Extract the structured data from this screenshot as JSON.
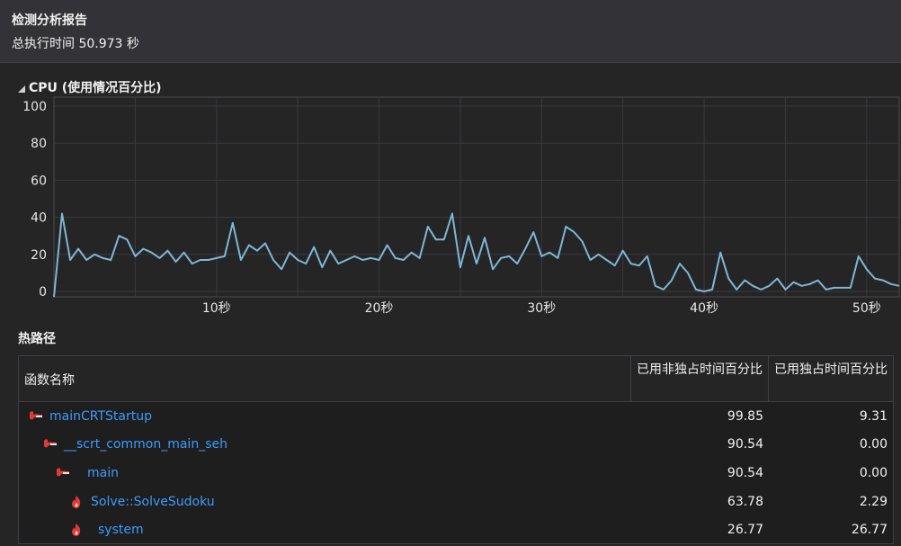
{
  "header": {
    "title": "检测分析报告",
    "total_time": "总执行时间 50.973 秒"
  },
  "cpu_section": {
    "label": "CPU (使用情况百分比)"
  },
  "chart_data": {
    "type": "line",
    "title": "CPU (使用情况百分比)",
    "xlabel": "",
    "ylabel": "",
    "ylim": [
      0,
      100
    ],
    "xlim": [
      0,
      52
    ],
    "y_ticks": [
      "100",
      "80",
      "60",
      "40",
      "20",
      "0"
    ],
    "y_tick_values": [
      100,
      80,
      60,
      40,
      20,
      0
    ],
    "x_ticks": [
      "10秒",
      "20秒",
      "30秒",
      "40秒",
      "50秒"
    ],
    "x_tick_values": [
      10,
      20,
      30,
      40,
      50
    ],
    "grid": true,
    "color": "#7fb6d6",
    "series": [
      {
        "x": [
          0,
          0.5,
          1,
          1.5,
          2,
          2.5,
          3,
          3.5,
          4,
          4.5,
          5,
          5.5,
          6,
          6.5,
          7,
          7.5,
          8,
          8.5,
          9,
          9.5,
          10,
          10.5,
          11,
          11.5,
          12,
          12.5,
          13,
          13.5,
          14,
          14.5,
          15,
          15.5,
          16,
          16.5,
          17,
          17.5,
          18,
          18.5,
          19,
          19.5,
          20,
          20.5,
          21,
          21.5,
          22,
          22.5,
          23,
          23.5,
          24,
          24.5,
          25,
          25.5,
          26,
          26.5,
          27,
          27.5,
          28,
          28.5,
          29,
          29.5,
          30,
          30.5,
          31,
          31.5,
          32,
          32.5,
          33,
          33.5,
          34,
          34.5,
          35,
          35.5,
          36,
          36.5,
          37,
          37.5,
          38,
          38.5,
          39,
          39.5,
          40,
          40.5,
          41,
          41.5,
          42,
          42.5,
          43,
          43.5,
          44,
          44.5,
          45,
          45.5,
          46,
          46.5,
          47,
          47.5,
          48,
          48.5,
          49,
          49.5,
          50,
          50.5,
          51,
          51.5,
          52
        ],
        "y": [
          -3,
          42,
          17,
          23,
          17,
          20,
          18,
          17,
          30,
          28,
          19,
          23,
          21,
          18,
          22,
          16,
          21,
          15,
          17,
          17,
          18,
          19,
          37,
          17,
          25,
          22,
          26,
          17,
          12,
          21,
          17,
          15,
          24,
          13,
          22,
          15,
          17,
          19,
          17,
          18,
          17,
          25,
          18,
          17,
          21,
          18,
          35,
          28,
          28,
          42,
          13,
          30,
          15,
          29,
          12,
          18,
          19,
          15,
          23,
          32,
          19,
          21,
          18,
          35,
          32,
          27,
          17,
          20,
          17,
          14,
          22,
          15,
          14,
          19,
          3,
          1,
          6,
          15,
          10,
          1,
          0,
          1,
          21,
          7,
          1,
          6,
          3,
          1,
          3,
          7,
          1,
          5,
          3,
          4,
          6,
          1,
          2,
          2,
          2,
          19,
          12,
          7,
          6,
          4,
          3
        ]
      }
    ]
  },
  "hot_path": {
    "title": "热路径",
    "columns": [
      "函数名称",
      "已用非独占时间百分比",
      "已用独占时间百分比"
    ],
    "rows": [
      {
        "name": "mainCRTStartup",
        "inclusive": "99.85",
        "exclusive": "9.31"
      },
      {
        "name": "__scrt_common_main_seh",
        "inclusive": "90.54",
        "exclusive": "0.00"
      },
      {
        "name": "main",
        "inclusive": "90.54",
        "exclusive": "0.00"
      },
      {
        "name": "Solve::SolveSudoku",
        "inclusive": "63.78",
        "exclusive": "2.29"
      },
      {
        "name": "system",
        "inclusive": "26.77",
        "exclusive": "26.77"
      }
    ]
  },
  "colors": {
    "accent_link": "#3d9bff",
    "line": "#7fb6d6",
    "hot_icon": "#e03b3b"
  },
  "icons": [
    "hot-path-arrow-icon",
    "flame-icon"
  ]
}
